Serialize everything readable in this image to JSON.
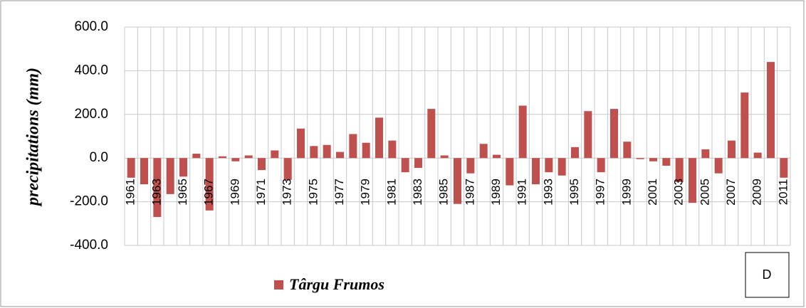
{
  "chart_data": {
    "type": "bar",
    "y_label": "precipitations (mm)",
    "annotation": "D",
    "categories": [
      "1961",
      null,
      "1963",
      null,
      "1965",
      null,
      "1967",
      null,
      "1969",
      null,
      "1971",
      null,
      "1973",
      null,
      "1975",
      null,
      "1977",
      null,
      "1979",
      null,
      "1981",
      null,
      "1983",
      null,
      "1985",
      null,
      "1987",
      null,
      "1989",
      null,
      "1991",
      null,
      "1993",
      null,
      "1995",
      null,
      "1997",
      null,
      "1999",
      null,
      "2001",
      null,
      "2003",
      null,
      "2005",
      null,
      "2007",
      null,
      "2009",
      null,
      "2011"
    ],
    "series": [
      {
        "name": "Târgu Frumos",
        "color": "#c0504d",
        "values": [
          -90,
          -120,
          -270,
          -165,
          -85,
          20,
          -240,
          8,
          -15,
          12,
          -55,
          35,
          -100,
          135,
          55,
          60,
          28,
          110,
          70,
          185,
          80,
          -65,
          -45,
          225,
          12,
          -210,
          -70,
          65,
          15,
          -125,
          240,
          -120,
          -65,
          -80,
          50,
          215,
          -65,
          225,
          75,
          -5,
          -15,
          -35,
          -110,
          -205,
          40,
          -70,
          80,
          300,
          25,
          440,
          -90
        ]
      }
    ],
    "ylim": [
      -400,
      600
    ],
    "yticks": [
      {
        "value": -400,
        "label": "-400.0"
      },
      {
        "value": -200,
        "label": "-200.0"
      },
      {
        "value": 0,
        "label": "0.0"
      },
      {
        "value": 200,
        "label": "200.0"
      },
      {
        "value": 400,
        "label": "400.0"
      },
      {
        "value": 600,
        "label": "600.0"
      }
    ],
    "grid": true,
    "legend": "bottom-left"
  }
}
